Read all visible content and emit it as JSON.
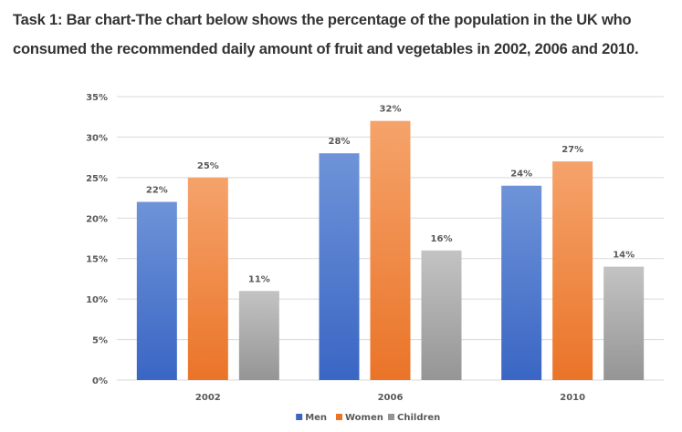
{
  "task_heading": "Task 1: Bar chart-The chart below shows the percentage of the population in the UK who consumed the recommended daily amount of fruit and vegetables in 2002, 2006 and 2010.",
  "colors": {
    "Men": [
      "#6e93d8",
      "#3a66c4"
    ],
    "Women": [
      "#f5a36b",
      "#ea7428"
    ],
    "Children": [
      "#c3c3c3",
      "#959595"
    ],
    "grid": "#d9d9d9",
    "text": "#595959"
  },
  "chart_data": {
    "type": "bar",
    "title": "",
    "xlabel": "",
    "ylabel": "",
    "categories": [
      "2002",
      "2006",
      "2010"
    ],
    "series": [
      {
        "name": "Men",
        "values": [
          22,
          28,
          24
        ]
      },
      {
        "name": "Women",
        "values": [
          25,
          32,
          27
        ]
      },
      {
        "name": "Children",
        "values": [
          11,
          16,
          14
        ]
      }
    ],
    "data_labels": [
      [
        "22%",
        "28%",
        "24%"
      ],
      [
        "25%",
        "32%",
        "27%"
      ],
      [
        "11%",
        "16%",
        "14%"
      ]
    ],
    "ylim": [
      0,
      35
    ],
    "y_ticks": [
      0,
      5,
      10,
      15,
      20,
      25,
      30,
      35
    ],
    "y_tick_labels": [
      "0%",
      "5%",
      "10%",
      "15%",
      "20%",
      "25%",
      "30%",
      "35%"
    ],
    "grid": true,
    "legend_position": "bottom"
  }
}
